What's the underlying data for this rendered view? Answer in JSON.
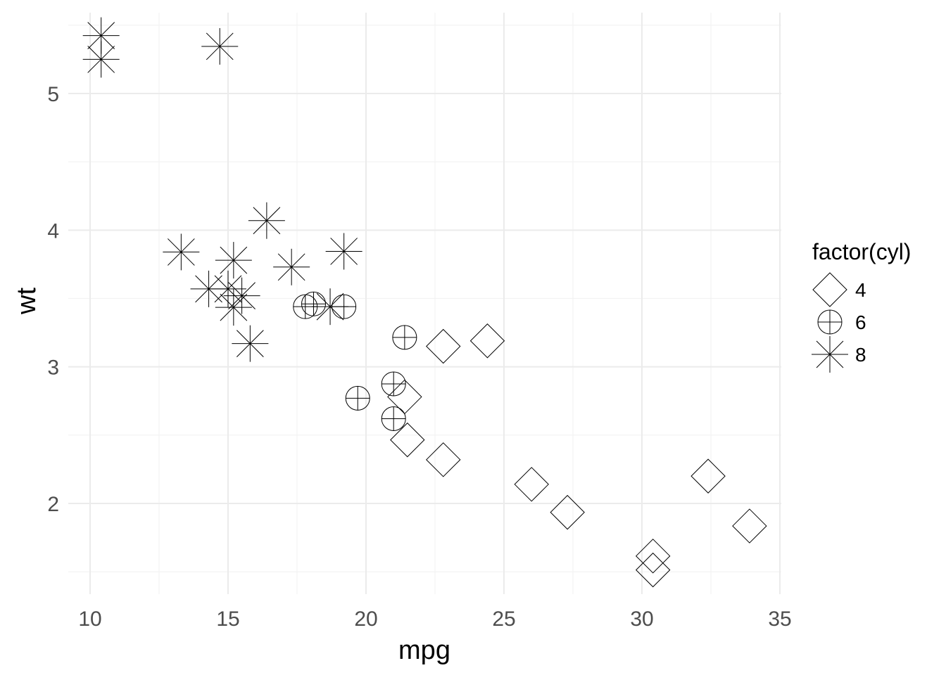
{
  "chart_data": {
    "type": "scatter",
    "xlabel": "mpg",
    "ylabel": "wt",
    "xlim": [
      9.2,
      35.0
    ],
    "ylim": [
      1.35,
      5.6
    ],
    "x_ticks": [
      10,
      15,
      20,
      25,
      30,
      35
    ],
    "y_ticks": [
      2,
      3,
      4,
      5
    ],
    "grid": true,
    "legend": {
      "title": "factor(cyl)",
      "placement": "right",
      "entries": [
        {
          "label": "4",
          "shape": "diamond"
        },
        {
          "label": "6",
          "shape": "circle-plus"
        },
        {
          "label": "8",
          "shape": "asterisk"
        }
      ]
    },
    "series": [
      {
        "name": "4",
        "shape": "diamond",
        "points": [
          {
            "x": 22.8,
            "y": 2.32
          },
          {
            "x": 24.4,
            "y": 3.19
          },
          {
            "x": 22.8,
            "y": 3.15
          },
          {
            "x": 32.4,
            "y": 2.2
          },
          {
            "x": 30.4,
            "y": 1.615
          },
          {
            "x": 33.9,
            "y": 1.835
          },
          {
            "x": 21.5,
            "y": 2.465
          },
          {
            "x": 27.3,
            "y": 1.935
          },
          {
            "x": 26.0,
            "y": 2.14
          },
          {
            "x": 30.4,
            "y": 1.513
          },
          {
            "x": 21.4,
            "y": 2.78
          }
        ]
      },
      {
        "name": "6",
        "shape": "circle-plus",
        "points": [
          {
            "x": 21.0,
            "y": 2.62
          },
          {
            "x": 21.0,
            "y": 2.875
          },
          {
            "x": 21.4,
            "y": 3.215
          },
          {
            "x": 18.1,
            "y": 3.46
          },
          {
            "x": 19.2,
            "y": 3.44
          },
          {
            "x": 17.8,
            "y": 3.44
          },
          {
            "x": 19.7,
            "y": 2.77
          }
        ]
      },
      {
        "name": "8",
        "shape": "asterisk",
        "points": [
          {
            "x": 18.7,
            "y": 3.44
          },
          {
            "x": 14.3,
            "y": 3.57
          },
          {
            "x": 16.4,
            "y": 4.07
          },
          {
            "x": 17.3,
            "y": 3.73
          },
          {
            "x": 15.2,
            "y": 3.78
          },
          {
            "x": 10.4,
            "y": 5.25
          },
          {
            "x": 10.4,
            "y": 5.424
          },
          {
            "x": 14.7,
            "y": 5.345
          },
          {
            "x": 15.5,
            "y": 3.52
          },
          {
            "x": 15.2,
            "y": 3.435
          },
          {
            "x": 13.3,
            "y": 3.84
          },
          {
            "x": 19.2,
            "y": 3.845
          },
          {
            "x": 15.8,
            "y": 3.17
          },
          {
            "x": 15.0,
            "y": 3.57
          }
        ]
      }
    ]
  }
}
